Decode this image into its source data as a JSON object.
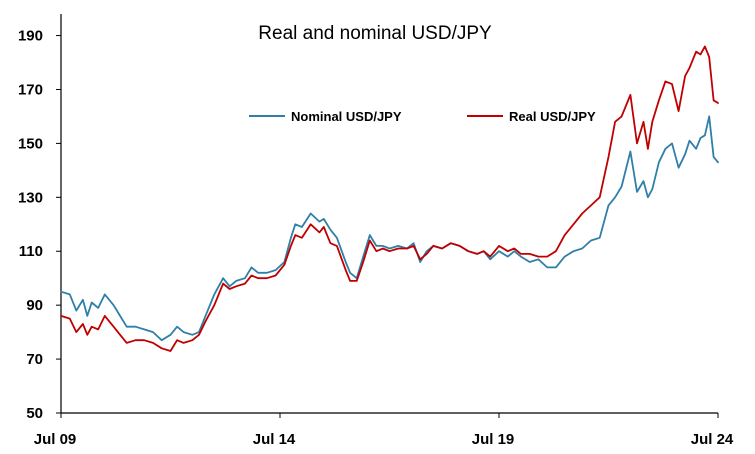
{
  "chart_data": {
    "type": "line",
    "title": "Real and nominal USD/JPY",
    "xlabel": "",
    "ylabel": "",
    "xlim": [
      2009.5,
      2024.5
    ],
    "ylim": [
      50,
      198
    ],
    "y_ticks": [
      50,
      70,
      90,
      110,
      130,
      150,
      170,
      190
    ],
    "x_ticks": [
      {
        "value": 2009.5,
        "label": "Jul 09"
      },
      {
        "value": 2014.5,
        "label": "Jul 14"
      },
      {
        "value": 2019.5,
        "label": "Jul 19"
      },
      {
        "value": 2024.5,
        "label": "Jul 24"
      }
    ],
    "grid": false,
    "legend_position": "top-center",
    "series": [
      {
        "name": "Nominal USD/JPY",
        "color": "#2f7fa8",
        "x": [
          2009.5,
          2009.7,
          2009.85,
          2010.0,
          2010.1,
          2010.2,
          2010.35,
          2010.5,
          2010.7,
          2010.85,
          2011.0,
          2011.2,
          2011.4,
          2011.6,
          2011.8,
          2012.0,
          2012.15,
          2012.3,
          2012.5,
          2012.65,
          2012.8,
          2013.0,
          2013.2,
          2013.35,
          2013.5,
          2013.7,
          2013.85,
          2014.0,
          2014.2,
          2014.4,
          2014.6,
          2014.75,
          2014.85,
          2015.0,
          2015.2,
          2015.4,
          2015.5,
          2015.65,
          2015.8,
          2016.0,
          2016.1,
          2016.25,
          2016.4,
          2016.55,
          2016.7,
          2016.85,
          2017.0,
          2017.2,
          2017.4,
          2017.55,
          2017.7,
          2017.85,
          2018.0,
          2018.2,
          2018.4,
          2018.6,
          2018.8,
          2019.0,
          2019.15,
          2019.3,
          2019.5,
          2019.7,
          2019.85,
          2020.0,
          2020.2,
          2020.4,
          2020.6,
          2020.8,
          2021.0,
          2021.2,
          2021.4,
          2021.6,
          2021.8,
          2022.0,
          2022.15,
          2022.3,
          2022.5,
          2022.65,
          2022.8,
          2022.9,
          2023.0,
          2023.15,
          2023.3,
          2023.45,
          2023.6,
          2023.75,
          2023.85,
          2024.0,
          2024.1,
          2024.2,
          2024.3,
          2024.4,
          2024.5
        ],
        "values": [
          95,
          94,
          88,
          92,
          86,
          91,
          89,
          94,
          90,
          86,
          82,
          82,
          81,
          80,
          77,
          79,
          82,
          80,
          79,
          80,
          86,
          94,
          100,
          97,
          99,
          100,
          104,
          102,
          102,
          103,
          106,
          115,
          120,
          119,
          124,
          121,
          122,
          118,
          115,
          106,
          102,
          100,
          108,
          116,
          112,
          112,
          111,
          112,
          111,
          113,
          106,
          110,
          112,
          111,
          113,
          112,
          110,
          109,
          110,
          107,
          110,
          108,
          110,
          108,
          106,
          107,
          104,
          104,
          108,
          110,
          111,
          114,
          115,
          127,
          130,
          134,
          147,
          132,
          136,
          130,
          133,
          143,
          148,
          150,
          141,
          146,
          151,
          148,
          152,
          153,
          160,
          145,
          143
        ]
      },
      {
        "name": "Real USD/JPY",
        "color": "#c00000",
        "x": [
          2009.5,
          2009.7,
          2009.85,
          2010.0,
          2010.1,
          2010.2,
          2010.35,
          2010.5,
          2010.7,
          2010.85,
          2011.0,
          2011.2,
          2011.4,
          2011.6,
          2011.8,
          2012.0,
          2012.15,
          2012.3,
          2012.5,
          2012.65,
          2012.8,
          2013.0,
          2013.2,
          2013.35,
          2013.5,
          2013.7,
          2013.85,
          2014.0,
          2014.2,
          2014.4,
          2014.6,
          2014.75,
          2014.85,
          2015.0,
          2015.2,
          2015.4,
          2015.5,
          2015.65,
          2015.8,
          2016.0,
          2016.1,
          2016.25,
          2016.4,
          2016.55,
          2016.7,
          2016.85,
          2017.0,
          2017.2,
          2017.4,
          2017.55,
          2017.7,
          2017.85,
          2018.0,
          2018.2,
          2018.4,
          2018.6,
          2018.8,
          2019.0,
          2019.15,
          2019.3,
          2019.5,
          2019.7,
          2019.85,
          2020.0,
          2020.2,
          2020.4,
          2020.6,
          2020.8,
          2021.0,
          2021.2,
          2021.4,
          2021.6,
          2021.8,
          2022.0,
          2022.15,
          2022.3,
          2022.5,
          2022.65,
          2022.8,
          2022.9,
          2023.0,
          2023.15,
          2023.3,
          2023.45,
          2023.6,
          2023.75,
          2023.85,
          2024.0,
          2024.1,
          2024.2,
          2024.3,
          2024.4,
          2024.5
        ],
        "values": [
          86,
          85,
          80,
          83,
          79,
          82,
          81,
          86,
          82,
          79,
          76,
          77,
          77,
          76,
          74,
          73,
          77,
          76,
          77,
          79,
          84,
          90,
          98,
          96,
          97,
          98,
          101,
          100,
          100,
          101,
          105,
          112,
          116,
          115,
          120,
          117,
          119,
          113,
          112,
          103,
          99,
          99,
          106,
          114,
          110,
          111,
          110,
          111,
          111,
          112,
          107,
          109,
          112,
          111,
          113,
          112,
          110,
          109,
          110,
          108,
          112,
          110,
          111,
          109,
          109,
          108,
          108,
          110,
          116,
          120,
          124,
          127,
          130,
          145,
          158,
          160,
          168,
          150,
          158,
          148,
          158,
          166,
          173,
          172,
          162,
          175,
          178,
          184,
          183,
          186,
          182,
          166,
          165
        ]
      }
    ]
  }
}
